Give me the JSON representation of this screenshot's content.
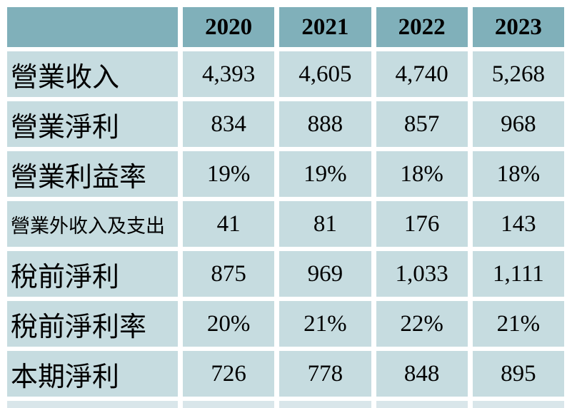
{
  "table": {
    "columns": [
      "",
      "2020",
      "2021",
      "2022",
      "2023"
    ],
    "rows": [
      {
        "label": "營業收入",
        "small": false,
        "values": [
          "4,393",
          "4,605",
          "4,740",
          "5,268"
        ]
      },
      {
        "label": "營業淨利",
        "small": false,
        "values": [
          "834",
          "888",
          "857",
          "968"
        ]
      },
      {
        "label": "營業利益率",
        "small": false,
        "values": [
          "19%",
          "19%",
          "18%",
          "18%"
        ]
      },
      {
        "label": "營業外收入及支出",
        "small": true,
        "values": [
          "41",
          "81",
          "176",
          "143"
        ]
      },
      {
        "label": "稅前淨利",
        "small": false,
        "values": [
          "875",
          "969",
          "1,033",
          "1,111"
        ]
      },
      {
        "label": "稅前淨利率",
        "small": false,
        "values": [
          "20%",
          "21%",
          "22%",
          "21%"
        ]
      },
      {
        "label": "本期淨利",
        "small": false,
        "values": [
          "726",
          "778",
          "848",
          "895"
        ]
      }
    ]
  },
  "colors": {
    "header_bg": "#80b0ba",
    "cell_bg": "#c6dce0",
    "partial_row_bg": "#d9e6ea",
    "text": "#000000",
    "background": "#ffffff",
    "gridline": "#ffffff"
  },
  "chart_data": {
    "type": "table",
    "title": "",
    "categories": [
      "2020",
      "2021",
      "2022",
      "2023"
    ],
    "series": [
      {
        "name": "營業收入",
        "values": [
          4393,
          4605,
          4740,
          5268
        ]
      },
      {
        "name": "營業淨利",
        "values": [
          834,
          888,
          857,
          968
        ]
      },
      {
        "name": "營業利益率",
        "values": [
          "19%",
          "19%",
          "18%",
          "18%"
        ]
      },
      {
        "name": "營業外收入及支出",
        "values": [
          41,
          81,
          176,
          143
        ]
      },
      {
        "name": "稅前淨利",
        "values": [
          875,
          969,
          1033,
          1111
        ]
      },
      {
        "name": "稅前淨利率",
        "values": [
          "20%",
          "21%",
          "22%",
          "21%"
        ]
      },
      {
        "name": "本期淨利",
        "values": [
          726,
          778,
          848,
          895
        ]
      }
    ],
    "legend_position": "none",
    "grid": "white gridlines between cells"
  }
}
